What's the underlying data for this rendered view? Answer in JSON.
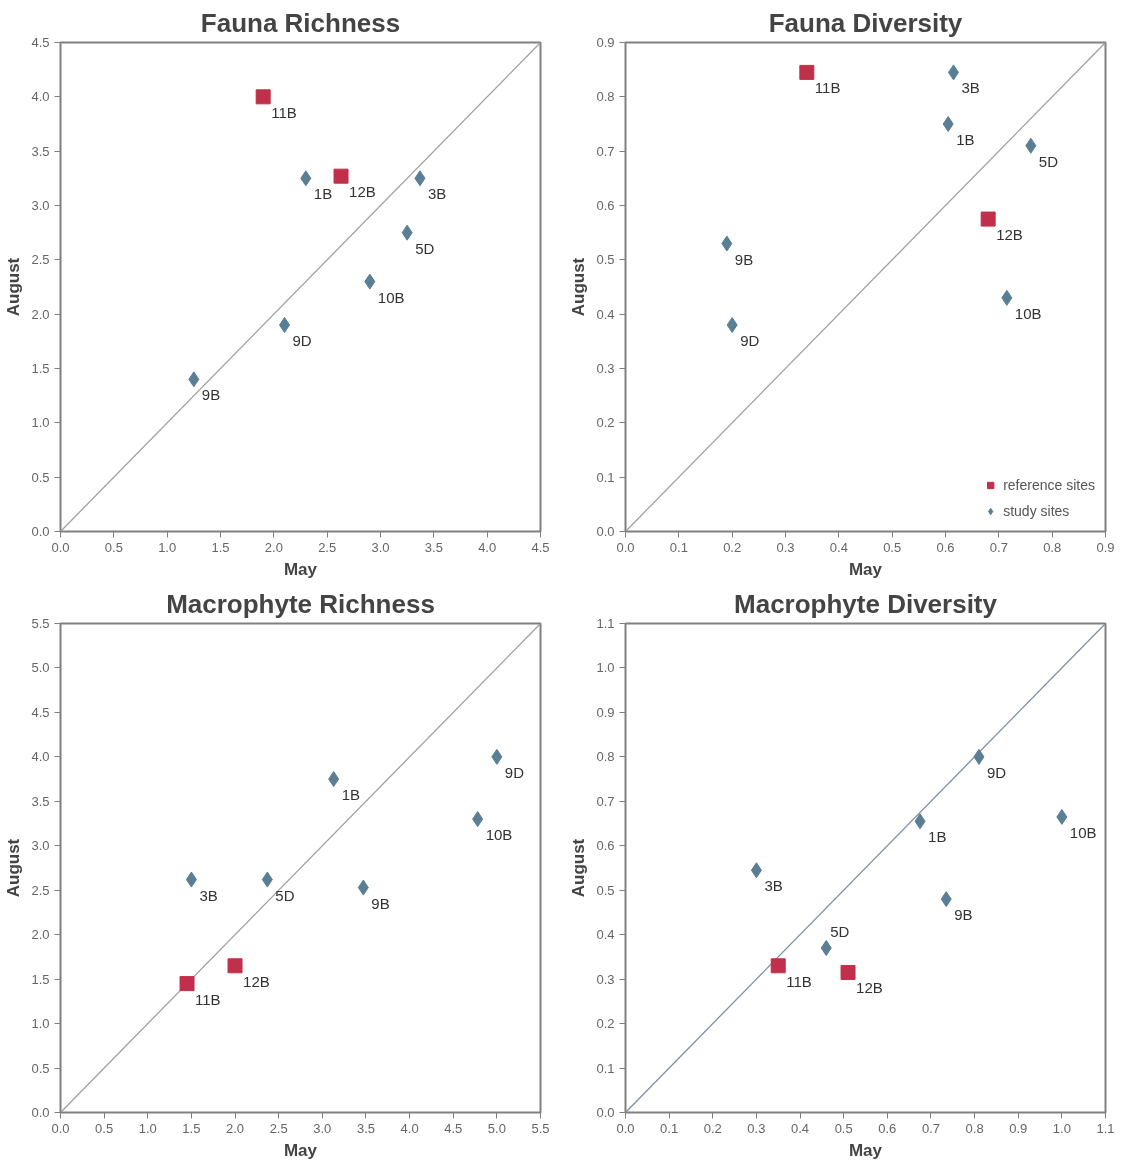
{
  "chart_data": [
    {
      "type": "scatter",
      "title": "Fauna Richness",
      "xlabel": "May",
      "ylabel": "August",
      "xlim": [
        0,
        4.5
      ],
      "ylim": [
        0,
        4.5
      ],
      "xticks": [
        {
          "value": 0,
          "label": "0.0"
        },
        {
          "value": 0.5,
          "label": "0.5"
        },
        {
          "value": 1,
          "label": "1.0"
        },
        {
          "value": 1.5,
          "label": "1.5"
        },
        {
          "value": 2,
          "label": "2.0"
        },
        {
          "value": 2.5,
          "label": "2.5"
        },
        {
          "value": 3,
          "label": "3.0"
        },
        {
          "value": 3.5,
          "label": "3.5"
        },
        {
          "value": 4,
          "label": "4.0"
        },
        {
          "value": 4.5,
          "label": "4.5"
        }
      ],
      "yticks": [
        {
          "value": 0,
          "label": "0.0"
        },
        {
          "value": 0.5,
          "label": "0.5"
        },
        {
          "value": 1,
          "label": "1.0"
        },
        {
          "value": 1.5,
          "label": "1.5"
        },
        {
          "value": 2,
          "label": "2.0"
        },
        {
          "value": 2.5,
          "label": "2.5"
        },
        {
          "value": 3,
          "label": "3.0"
        },
        {
          "value": 3.5,
          "label": "3.5"
        },
        {
          "value": 4,
          "label": "4.0"
        },
        {
          "value": 4.5,
          "label": "4.5"
        }
      ],
      "grid": false,
      "legend": false,
      "series": [
        {
          "type": "line",
          "color": "#a0a0a0",
          "marker": "none",
          "x": [
            0,
            4.5
          ],
          "values": [
            0,
            4.5
          ]
        },
        {
          "color": "#c0304a",
          "marker": "square",
          "x": [
            1.9,
            2.63
          ],
          "values": [
            4.0,
            3.27
          ]
        },
        {
          "color": "#5a7f95",
          "marker": "diamond",
          "x": [
            2.3,
            3.37,
            3.25,
            2.9,
            2.1,
            1.25
          ],
          "values": [
            3.25,
            3.25,
            2.75,
            2.3,
            1.9,
            1.4
          ]
        }
      ],
      "annotations": [
        {
          "text": "11B",
          "x": 1.9,
          "y": 4.0
        },
        {
          "text": "12B",
          "x": 2.63,
          "y": 3.27
        },
        {
          "text": "1B",
          "x": 2.3,
          "y": 3.25
        },
        {
          "text": "3B",
          "x": 3.37,
          "y": 3.25
        },
        {
          "text": "5D",
          "x": 3.25,
          "y": 2.75
        },
        {
          "text": "10B",
          "x": 2.9,
          "y": 2.3
        },
        {
          "text": "9D",
          "x": 2.1,
          "y": 1.9
        },
        {
          "text": "9B",
          "x": 1.25,
          "y": 1.4
        }
      ]
    },
    {
      "type": "scatter",
      "title": "Fauna Diversity",
      "xlabel": "May",
      "ylabel": "August",
      "xlim": [
        0,
        0.9
      ],
      "ylim": [
        0,
        0.9
      ],
      "xticks": [
        {
          "value": 0,
          "label": "0.0"
        },
        0.1,
        0.2,
        0.3,
        0.4,
        0.5,
        0.6,
        0.7,
        0.8,
        0.9
      ],
      "yticks": [
        {
          "value": 0,
          "label": "0.0"
        },
        0.1,
        0.2,
        0.3,
        0.4,
        0.5,
        0.6,
        0.7,
        0.8,
        0.9
      ],
      "grid": false,
      "legend": "bottom right",
      "series": [
        {
          "type": "line",
          "color": "#a0a0a0",
          "marker": "none",
          "x": [
            0,
            0.9
          ],
          "values": [
            0,
            0.9
          ]
        },
        {
          "name": "reference sites",
          "color": "#c0304a",
          "marker": "square",
          "x": [
            0.34,
            0.68
          ],
          "values": [
            0.845,
            0.575
          ]
        },
        {
          "name": "study sites",
          "color": "#5a7f95",
          "marker": "diamond",
          "x": [
            0.615,
            0.605,
            0.76,
            0.715,
            0.19,
            0.2
          ],
          "values": [
            0.845,
            0.75,
            0.71,
            0.43,
            0.53,
            0.38
          ]
        }
      ],
      "annotations": [
        {
          "text": "11B",
          "x": 0.34,
          "y": 0.845
        },
        {
          "text": "12B",
          "x": 0.68,
          "y": 0.575
        },
        {
          "text": "3B",
          "x": 0.615,
          "y": 0.845
        },
        {
          "text": "1B",
          "x": 0.605,
          "y": 0.75
        },
        {
          "text": "5D",
          "x": 0.76,
          "y": 0.71
        },
        {
          "text": "10B",
          "x": 0.715,
          "y": 0.43
        },
        {
          "text": "9B",
          "x": 0.19,
          "y": 0.53
        },
        {
          "text": "9D",
          "x": 0.2,
          "y": 0.38
        }
      ]
    },
    {
      "type": "scatter",
      "title": "Macrophyte Richness",
      "xlabel": "May",
      "ylabel": "August",
      "xlim": [
        0,
        5.5
      ],
      "ylim": [
        0,
        5.5
      ],
      "xticks": [
        {
          "value": 0,
          "label": "0.0"
        },
        0.5,
        {
          "value": 1,
          "label": "1.0"
        },
        1.5,
        {
          "value": 2,
          "label": "2.0"
        },
        2.5,
        {
          "value": 3,
          "label": "3.0"
        },
        3.5,
        {
          "value": 4,
          "label": "4.0"
        },
        4.5,
        {
          "value": 5,
          "label": "5.0"
        },
        5.5
      ],
      "yticks": [
        {
          "value": 0,
          "label": "0.0"
        },
        0.5,
        {
          "value": 1,
          "label": "1.0"
        },
        1.5,
        {
          "value": 2,
          "label": "2.0"
        },
        2.5,
        {
          "value": 3,
          "label": "3.0"
        },
        3.5,
        {
          "value": 4,
          "label": "4.0"
        },
        4.5,
        {
          "value": 5,
          "label": "5.0"
        },
        5.5
      ],
      "grid": false,
      "legend": false,
      "series": [
        {
          "type": "line",
          "color": "#a0a0a0",
          "marker": "none",
          "x": [
            0,
            5.5
          ],
          "values": [
            0,
            5.5
          ]
        },
        {
          "color": "#c0304a",
          "marker": "square",
          "x": [
            1.45,
            2.0
          ],
          "values": [
            1.45,
            1.65
          ]
        },
        {
          "color": "#5a7f95",
          "marker": "diamond",
          "x": [
            3.13,
            5.0,
            4.78,
            1.5,
            2.37,
            3.47
          ],
          "values": [
            3.75,
            4.0,
            3.3,
            2.62,
            2.62,
            2.53
          ]
        }
      ],
      "annotations": [
        {
          "text": "11B",
          "x": 1.45,
          "y": 1.45
        },
        {
          "text": "12B",
          "x": 2.0,
          "y": 1.65
        },
        {
          "text": "1B",
          "x": 3.13,
          "y": 3.75
        },
        {
          "text": "9D",
          "x": 5.0,
          "y": 4.0
        },
        {
          "text": "10B",
          "x": 4.78,
          "y": 3.3
        },
        {
          "text": "3B",
          "x": 1.5,
          "y": 2.62
        },
        {
          "text": "5D",
          "x": 2.37,
          "y": 2.62
        },
        {
          "text": "9B",
          "x": 3.47,
          "y": 2.53
        }
      ]
    },
    {
      "type": "scatter",
      "title": "Macrophyte Diversity",
      "xlabel": "May",
      "ylabel": "August",
      "xlim": [
        0,
        1.1
      ],
      "ylim": [
        0,
        1.1
      ],
      "xticks": [
        {
          "value": 0,
          "label": "0.0"
        },
        0.1,
        0.2,
        0.3,
        0.4,
        0.5,
        0.6,
        0.7,
        0.8,
        0.9,
        {
          "value": 1,
          "label": "1.0"
        },
        1.1
      ],
      "yticks": [
        {
          "value": 0,
          "label": "0.0"
        },
        0.1,
        0.2,
        0.3,
        0.4,
        0.5,
        0.6,
        0.7,
        0.8,
        0.9,
        {
          "value": 1,
          "label": "1.0"
        },
        1.1
      ],
      "grid": false,
      "legend": false,
      "series": [
        {
          "type": "line",
          "color": "#7f8f9f",
          "marker": "none",
          "x": [
            0,
            1.1
          ],
          "values": [
            0,
            1.1
          ]
        },
        {
          "color": "#c0304a",
          "marker": "square",
          "x": [
            0.35,
            0.51
          ],
          "values": [
            0.33,
            0.315
          ]
        },
        {
          "color": "#5a7f95",
          "marker": "diamond",
          "x": [
            0.3,
            0.46,
            0.675,
            0.735,
            0.81,
            1.0
          ],
          "values": [
            0.545,
            0.37,
            0.655,
            0.48,
            0.8,
            0.665
          ]
        }
      ],
      "annotations": [
        {
          "text": "11B",
          "x": 0.35,
          "y": 0.33
        },
        {
          "text": "12B",
          "x": 0.51,
          "y": 0.315
        },
        {
          "text": "3B",
          "x": 0.3,
          "y": 0.545
        },
        {
          "text": "5D",
          "x": 0.46,
          "y": 0.37
        },
        {
          "text": "1B",
          "x": 0.675,
          "y": 0.655
        },
        {
          "text": "9B",
          "x": 0.735,
          "y": 0.48
        },
        {
          "text": "9D",
          "x": 0.81,
          "y": 0.8
        },
        {
          "text": "10B",
          "x": 1.0,
          "y": 0.665
        }
      ]
    }
  ]
}
